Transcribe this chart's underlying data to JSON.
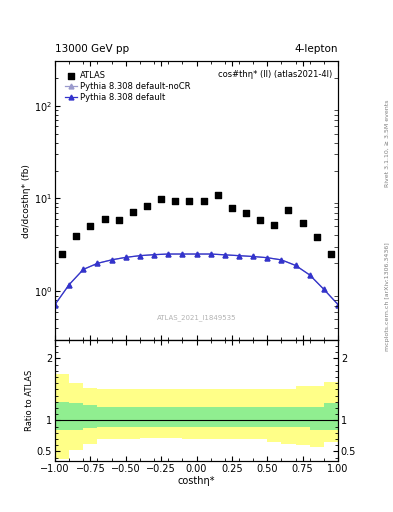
{
  "title_top": "13000 GeV pp",
  "title_right": "4-lepton",
  "plot_title": "cos#thη* (ll) (atlas2021-4l)",
  "xlabel": "costhη*",
  "ylabel_main": "dσ/dcosthη* (fb)",
  "ylabel_ratio": "Ratio to ATLAS",
  "rivet_label": "Rivet 3.1.10, ≥ 3.5M events",
  "arxiv_label": "mcplots.cern.ch [arXiv:1306.3436]",
  "watermark": "ATLAS_2021_I1849535",
  "atlas_x": [
    -0.95,
    -0.85,
    -0.75,
    -0.65,
    -0.55,
    -0.45,
    -0.35,
    -0.25,
    -0.15,
    -0.05,
    0.05,
    0.15,
    0.25,
    0.35,
    0.45,
    0.55,
    0.65,
    0.75,
    0.85,
    0.95
  ],
  "atlas_y": [
    2.5,
    3.9,
    5.0,
    6.0,
    5.8,
    7.2,
    8.2,
    9.8,
    9.5,
    9.5,
    9.5,
    11.0,
    7.8,
    7.0,
    5.8,
    5.2,
    7.5,
    5.5,
    3.8,
    2.5
  ],
  "pythia_x": [
    -1.0,
    -0.9,
    -0.8,
    -0.7,
    -0.6,
    -0.5,
    -0.4,
    -0.3,
    -0.2,
    -0.1,
    0.0,
    0.1,
    0.2,
    0.3,
    0.4,
    0.5,
    0.6,
    0.7,
    0.8,
    0.9,
    1.0
  ],
  "pythia_default_y": [
    0.72,
    1.18,
    1.72,
    2.0,
    2.18,
    2.32,
    2.42,
    2.48,
    2.52,
    2.52,
    2.52,
    2.52,
    2.47,
    2.42,
    2.37,
    2.3,
    2.18,
    1.9,
    1.5,
    1.05,
    0.72
  ],
  "pythia_noCR_y": [
    0.72,
    1.18,
    1.72,
    2.0,
    2.18,
    2.32,
    2.42,
    2.48,
    2.52,
    2.52,
    2.52,
    2.52,
    2.47,
    2.42,
    2.37,
    2.3,
    2.18,
    1.9,
    1.5,
    1.05,
    0.72
  ],
  "ratio_bin_edges": [
    -1.0,
    -0.9,
    -0.8,
    -0.7,
    -0.6,
    -0.5,
    -0.4,
    -0.3,
    -0.2,
    -0.1,
    0.0,
    0.1,
    0.2,
    0.3,
    0.4,
    0.5,
    0.6,
    0.7,
    0.8,
    0.9,
    1.0
  ],
  "ratio_green_lo": [
    0.85,
    0.85,
    0.88,
    0.9,
    0.9,
    0.9,
    0.9,
    0.9,
    0.9,
    0.9,
    0.9,
    0.9,
    0.9,
    0.9,
    0.9,
    0.9,
    0.9,
    0.9,
    0.85,
    0.85
  ],
  "ratio_green_hi": [
    1.3,
    1.28,
    1.25,
    1.22,
    1.22,
    1.22,
    1.22,
    1.22,
    1.22,
    1.22,
    1.22,
    1.22,
    1.22,
    1.22,
    1.22,
    1.22,
    1.22,
    1.22,
    1.22,
    1.28
  ],
  "ratio_yellow_lo": [
    0.38,
    0.52,
    0.62,
    0.7,
    0.7,
    0.7,
    0.72,
    0.72,
    0.72,
    0.7,
    0.7,
    0.7,
    0.7,
    0.7,
    0.7,
    0.65,
    0.62,
    0.6,
    0.58,
    0.65
  ],
  "ratio_yellow_hi": [
    1.75,
    1.6,
    1.52,
    1.5,
    1.5,
    1.5,
    1.5,
    1.5,
    1.5,
    1.5,
    1.5,
    1.5,
    1.5,
    1.5,
    1.5,
    1.5,
    1.5,
    1.55,
    1.55,
    1.62
  ],
  "xlim": [
    -1.0,
    1.0
  ],
  "ylim_main": [
    0.3,
    300
  ],
  "ylim_ratio": [
    0.35,
    2.3
  ],
  "color_pythia_default": "#3333cc",
  "color_pythia_noCR": "#9999cc",
  "color_atlas": "black",
  "color_green": "#90ee90",
  "color_yellow": "#ffff88",
  "background_color": "white"
}
